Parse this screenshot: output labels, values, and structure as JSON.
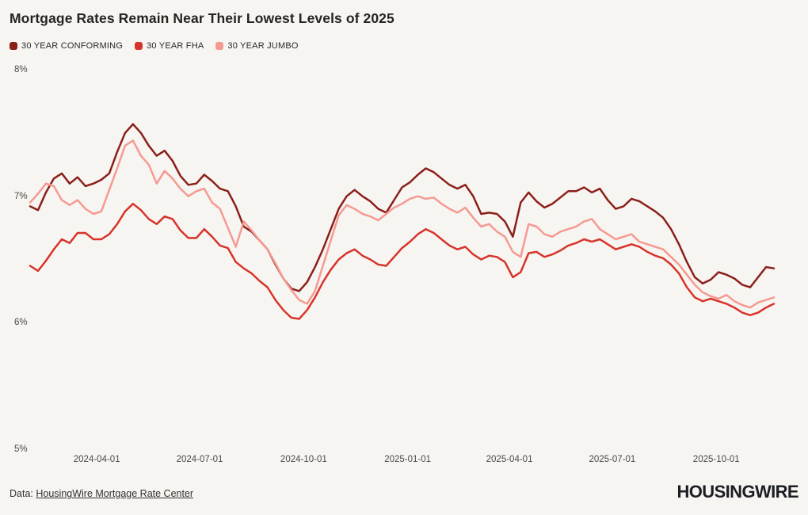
{
  "header": {
    "title": "Mortgage Rates Remain Near Their Lowest Levels of 2025"
  },
  "legend": {
    "items": [
      {
        "label": "30 YEAR CONFORMING",
        "color": "#8b1f1a"
      },
      {
        "label": "30 YEAR FHA",
        "color": "#d7342b"
      },
      {
        "label": "30 YEAR JUMBO",
        "color": "#f59a92"
      }
    ]
  },
  "chart_data": {
    "type": "line",
    "title": "Mortgage Rates Remain Near Their Lowest Levels of 2025",
    "xlabel": "",
    "ylabel": "",
    "ylim": [
      5,
      8
    ],
    "grid": false,
    "legend_position": "top",
    "background": "#f7f5f1",
    "x_domain": [
      "2024-02-02",
      "2025-11-21"
    ],
    "y_ticks": [
      {
        "value": 8,
        "label": "8%"
      },
      {
        "value": 7,
        "label": "7%"
      },
      {
        "value": 6,
        "label": "6%"
      },
      {
        "value": 5,
        "label": "5%"
      }
    ],
    "x_ticks": [
      "2024-04-01",
      "2024-07-01",
      "2024-10-01",
      "2025-01-01",
      "2025-04-01",
      "2025-07-01",
      "2025-10-01"
    ],
    "x": [
      "2024-02-02",
      "2024-02-09",
      "2024-02-16",
      "2024-02-23",
      "2024-03-01",
      "2024-03-08",
      "2024-03-15",
      "2024-03-22",
      "2024-03-29",
      "2024-04-05",
      "2024-04-12",
      "2024-04-19",
      "2024-04-26",
      "2024-05-03",
      "2024-05-10",
      "2024-05-17",
      "2024-05-24",
      "2024-05-31",
      "2024-06-07",
      "2024-06-14",
      "2024-06-21",
      "2024-06-28",
      "2024-07-05",
      "2024-07-12",
      "2024-07-19",
      "2024-07-26",
      "2024-08-02",
      "2024-08-09",
      "2024-08-16",
      "2024-08-23",
      "2024-08-30",
      "2024-09-06",
      "2024-09-13",
      "2024-09-20",
      "2024-09-27",
      "2024-10-04",
      "2024-10-11",
      "2024-10-18",
      "2024-10-25",
      "2024-11-01",
      "2024-11-08",
      "2024-11-15",
      "2024-11-22",
      "2024-11-29",
      "2024-12-06",
      "2024-12-13",
      "2024-12-20",
      "2024-12-27",
      "2025-01-03",
      "2025-01-10",
      "2025-01-17",
      "2025-01-24",
      "2025-01-31",
      "2025-02-07",
      "2025-02-14",
      "2025-02-21",
      "2025-02-28",
      "2025-03-07",
      "2025-03-14",
      "2025-03-21",
      "2025-03-28",
      "2025-04-04",
      "2025-04-11",
      "2025-04-18",
      "2025-04-25",
      "2025-05-02",
      "2025-05-09",
      "2025-05-16",
      "2025-05-23",
      "2025-05-30",
      "2025-06-06",
      "2025-06-13",
      "2025-06-20",
      "2025-06-27",
      "2025-07-04",
      "2025-07-11",
      "2025-07-18",
      "2025-07-25",
      "2025-08-01",
      "2025-08-08",
      "2025-08-15",
      "2025-08-22",
      "2025-08-29",
      "2025-09-05",
      "2025-09-12",
      "2025-09-19",
      "2025-09-26",
      "2025-10-03",
      "2025-10-10",
      "2025-10-17",
      "2025-10-24",
      "2025-10-31",
      "2025-11-07",
      "2025-11-14",
      "2025-11-21"
    ],
    "series": [
      {
        "name": "30 YEAR CONFORMING",
        "color": "#8b1f1a",
        "values": [
          6.92,
          6.89,
          7.03,
          7.14,
          7.18,
          7.1,
          7.15,
          7.08,
          7.1,
          7.13,
          7.18,
          7.35,
          7.5,
          7.57,
          7.5,
          7.4,
          7.32,
          7.36,
          7.28,
          7.16,
          7.09,
          7.1,
          7.17,
          7.12,
          7.06,
          7.04,
          6.92,
          6.76,
          6.72,
          6.65,
          6.58,
          6.46,
          6.35,
          6.27,
          6.25,
          6.32,
          6.44,
          6.58,
          6.74,
          6.9,
          7.0,
          7.05,
          7.0,
          6.96,
          6.9,
          6.87,
          6.97,
          7.07,
          7.11,
          7.17,
          7.22,
          7.19,
          7.14,
          7.09,
          7.06,
          7.09,
          7.0,
          6.86,
          6.87,
          6.86,
          6.8,
          6.68,
          6.95,
          7.03,
          6.96,
          6.91,
          6.94,
          6.99,
          7.04,
          7.04,
          7.07,
          7.03,
          7.06,
          6.97,
          6.9,
          6.92,
          6.98,
          6.96,
          6.92,
          6.88,
          6.83,
          6.74,
          6.62,
          6.48,
          6.36,
          6.31,
          6.34,
          6.4,
          6.38,
          6.35,
          6.3,
          6.28,
          6.36,
          6.44,
          6.43
        ]
      },
      {
        "name": "30 YEAR FHA",
        "color": "#d7342b",
        "values": [
          6.45,
          6.41,
          6.49,
          6.58,
          6.66,
          6.63,
          6.71,
          6.71,
          6.66,
          6.66,
          6.7,
          6.78,
          6.88,
          6.94,
          6.89,
          6.82,
          6.78,
          6.84,
          6.82,
          6.73,
          6.67,
          6.67,
          6.74,
          6.68,
          6.61,
          6.59,
          6.48,
          6.43,
          6.39,
          6.33,
          6.28,
          6.18,
          6.1,
          6.04,
          6.03,
          6.1,
          6.2,
          6.32,
          6.42,
          6.5,
          6.55,
          6.58,
          6.53,
          6.5,
          6.46,
          6.45,
          6.52,
          6.59,
          6.64,
          6.7,
          6.74,
          6.71,
          6.66,
          6.61,
          6.58,
          6.6,
          6.54,
          6.5,
          6.53,
          6.52,
          6.48,
          6.36,
          6.4,
          6.55,
          6.56,
          6.52,
          6.54,
          6.57,
          6.61,
          6.63,
          6.66,
          6.64,
          6.66,
          6.62,
          6.58,
          6.6,
          6.62,
          6.6,
          6.56,
          6.53,
          6.51,
          6.46,
          6.39,
          6.28,
          6.2,
          6.17,
          6.19,
          6.17,
          6.15,
          6.12,
          6.08,
          6.06,
          6.08,
          6.12,
          6.15
        ]
      },
      {
        "name": "30 YEAR JUMBO",
        "color": "#f59a92",
        "values": [
          6.95,
          7.02,
          7.1,
          7.08,
          6.97,
          6.93,
          6.97,
          6.9,
          6.86,
          6.88,
          7.05,
          7.22,
          7.4,
          7.44,
          7.32,
          7.25,
          7.1,
          7.2,
          7.14,
          7.06,
          7.0,
          7.04,
          7.06,
          6.95,
          6.9,
          6.75,
          6.6,
          6.8,
          6.73,
          6.65,
          6.58,
          6.47,
          6.35,
          6.26,
          6.18,
          6.15,
          6.25,
          6.45,
          6.65,
          6.85,
          6.93,
          6.9,
          6.86,
          6.84,
          6.81,
          6.86,
          6.91,
          6.94,
          6.98,
          7.0,
          6.98,
          6.99,
          6.94,
          6.9,
          6.87,
          6.91,
          6.83,
          6.76,
          6.78,
          6.72,
          6.68,
          6.56,
          6.52,
          6.78,
          6.76,
          6.7,
          6.68,
          6.72,
          6.74,
          6.76,
          6.8,
          6.82,
          6.74,
          6.7,
          6.66,
          6.68,
          6.7,
          6.64,
          6.62,
          6.6,
          6.58,
          6.52,
          6.46,
          6.38,
          6.3,
          6.24,
          6.21,
          6.19,
          6.22,
          6.17,
          6.14,
          6.12,
          6.16,
          6.18,
          6.2
        ]
      }
    ]
  },
  "footer": {
    "data_prefix": "Data: ",
    "source_link": "HousingWire Mortgage Rate Center",
    "logo": "HOUSINGWIRE"
  }
}
